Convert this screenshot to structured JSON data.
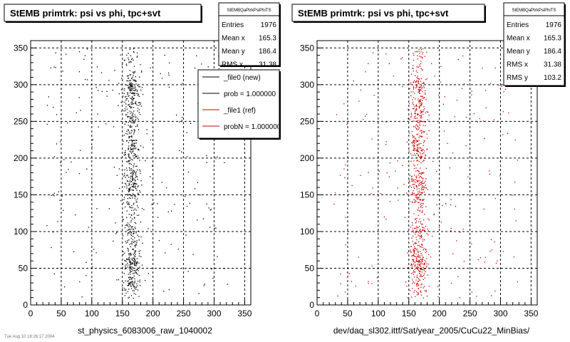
{
  "footer_text": "Tue Aug 10 18:26:17 2004",
  "chart_data": [
    {
      "type": "scatter",
      "title": "StEMB primtrk: psi vs phi, tpc+svt",
      "xlabel": "st_physics_6083006_raw_1040002",
      "ylabel": "",
      "xlim": [
        0,
        360
      ],
      "ylim": [
        0,
        360
      ],
      "x_ticks": [
        0,
        50,
        100,
        150,
        200,
        250,
        300,
        350
      ],
      "y_ticks": [
        0,
        50,
        100,
        150,
        200,
        250,
        300,
        350
      ],
      "grid": true,
      "point_color": "#000000",
      "stats": {
        "name": "StEMBQaPtrkPsiPhiTS",
        "rows": [
          {
            "label": "Entries",
            "value": "1976"
          },
          {
            "label": "Mean x",
            "value": "165.3"
          },
          {
            "label": "Mean y",
            "value": "186.4"
          },
          {
            "label": "RMS x",
            "value": "31.38"
          }
        ]
      },
      "legend": {
        "placement": "top-right",
        "entries": [
          {
            "label": "_file0 (new)",
            "color": "#000000"
          },
          {
            "label": "prob = 1.000000",
            "color": "#000000"
          },
          {
            "label": "_file1 (ref)",
            "color": "#cc0000"
          },
          {
            "label": "probN = 1.000000",
            "color": "#cc0000"
          }
        ]
      },
      "distribution": {
        "entries": 1976,
        "core_x_range": [
          150,
          180
        ],
        "core_fraction": 0.8,
        "background_x_range": [
          0,
          360
        ],
        "y_range": [
          10,
          350
        ]
      }
    },
    {
      "type": "scatter",
      "title": "StEMB primtrk: psi vs phi, tpc+svt",
      "xlabel": "dev/daq_sl302.ittf/Sat/year_2005/CuCu22_MinBias/",
      "ylabel": "",
      "xlim": [
        0,
        360
      ],
      "ylim": [
        0,
        360
      ],
      "x_ticks": [
        0,
        50,
        100,
        150,
        200,
        250,
        300,
        350
      ],
      "y_ticks": [
        0,
        50,
        100,
        150,
        200,
        250,
        300,
        350
      ],
      "grid": true,
      "point_color": "#cc0000",
      "stats": {
        "name": "StEMBQaPtrkPsiPhiTS",
        "rows": [
          {
            "label": "Entries",
            "value": "1976"
          },
          {
            "label": "Mean x",
            "value": "165.3"
          },
          {
            "label": "Mean y",
            "value": "186.4"
          },
          {
            "label": "RMS x",
            "value": "31.38"
          },
          {
            "label": "RMS y",
            "value": "103.2"
          }
        ]
      },
      "distribution": {
        "entries": 1976,
        "core_x_range": [
          150,
          180
        ],
        "core_fraction": 0.8,
        "background_x_range": [
          0,
          360
        ],
        "y_range": [
          10,
          350
        ]
      }
    }
  ]
}
